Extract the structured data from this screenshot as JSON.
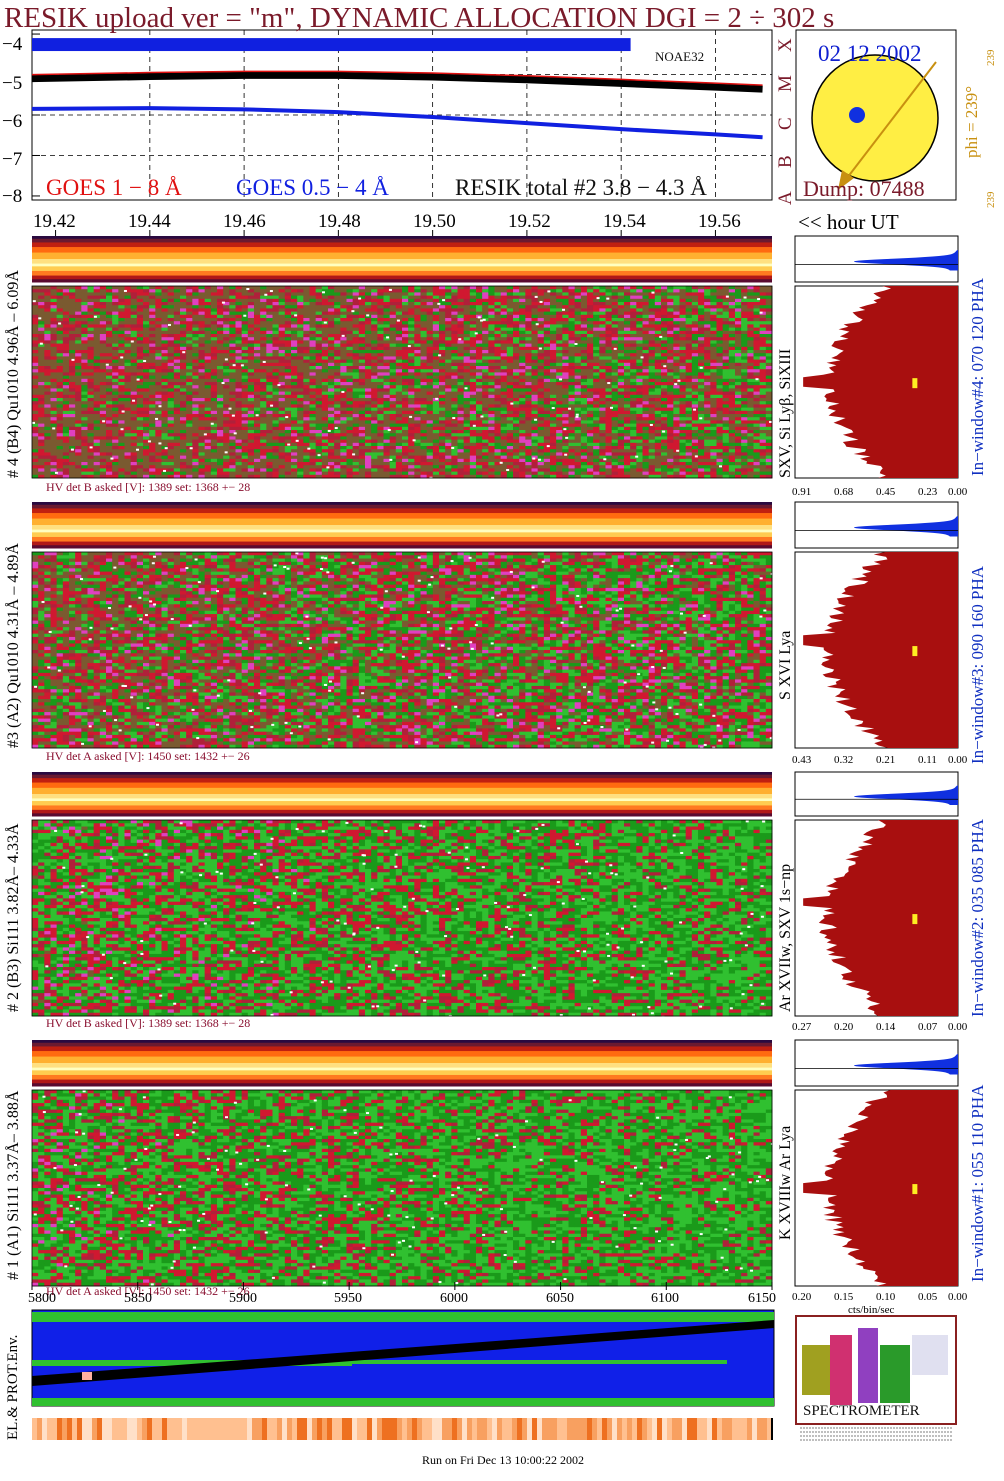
{
  "header": {
    "title": "RESIK upload ver = \"m\", DYNAMIC ALLOCATION  DGI =   2 ÷ 302 s"
  },
  "goes_panel": {
    "y_ticks": [
      "−4",
      "−5",
      "−6",
      "−7",
      "−8"
    ],
    "noaa_label": "NOAE32",
    "class_letters": [
      "X",
      "M",
      "C",
      "B",
      "A"
    ],
    "legend_goes_long": "GOES 1 − 8 Å",
    "legend_goes_short": "GOES 0.5 − 4 Å",
    "legend_resik": "RESIK total #2  3.8 − 4.3 Å"
  },
  "sun_panel": {
    "date": "02 12 2002",
    "dump": "Dump: 07488",
    "phi": "phi = 239°",
    "phi_small_top": "239",
    "phi_small_bottom": "239"
  },
  "time_axis": {
    "ticks": [
      "19.42",
      "19.44",
      "19.46",
      "19.48",
      "19.50",
      "19.52",
      "19.54",
      "19.56"
    ],
    "unit_label": "<< hour UT"
  },
  "channels": [
    {
      "left_label": "# 4 (B4) Qu1010 4.96Å – 6.09Å",
      "line_label": "SXV, Si Lyβ, SiXIII",
      "hv": "HV det B asked [V]:  1389 set:  1368  +−   28",
      "window": "In−window#4:  070 120 PHA",
      "pha_ticks": [
        "0.91",
        "0.68",
        "0.45",
        "0.23",
        "0.00"
      ]
    },
    {
      "left_label": "#3 (A2) Qu1010  4.31Å – 4.89Å",
      "line_label": "S XVI Lya",
      "hv": "HV det A asked [V]:  1450 set:  1432  +−   26",
      "window": "In−window#3:  090 160 PHA",
      "pha_ticks": [
        "0.43",
        "0.32",
        "0.21",
        "0.11",
        "0.00"
      ]
    },
    {
      "left_label": "# 2 (B3) Si111  3.82Å– 4.33Å",
      "line_label": "Ar XVIIw, SXV 1s−np",
      "hv": "HV det B asked [V]:  1389 set:  1368  +−   28",
      "window": "In−window#2:  035 085 PHA",
      "pha_ticks": [
        "0.27",
        "0.20",
        "0.14",
        "0.07",
        "0.00"
      ]
    },
    {
      "left_label": "# 1 (A1) Si111  3.37Å– 3.88Å",
      "line_label": "K XVIIIw  Ar Lya",
      "hv": "HV det A asked [V]:  1450 set:  1432  +−   26",
      "window": "In−window#1:  055 110 PHA",
      "pha_ticks": [
        "0.20",
        "0.15",
        "0.10",
        "0.05",
        "0.00"
      ]
    }
  ],
  "pha_unit": "cts/bin/sec",
  "bottom_axis": {
    "ticks": [
      "5800",
      "5850",
      "5900",
      "5950",
      "6000",
      "6050",
      "6100",
      "6150"
    ]
  },
  "env_panel": {
    "label": "EL.& PROT.Env."
  },
  "logo": {
    "bottom_text": "SPECTROMETER"
  },
  "footer": {
    "run_text": "Run on Fri Dec 13 10:00:22 2002"
  },
  "colors": {
    "title": "#7a1a2a",
    "goes_long": "#e01010",
    "goes_short": "#1020e0",
    "histogram": "#a80f0f",
    "histogram_top": "#1030e0",
    "window_text": "#1030c0",
    "hv_text": "#8a1030",
    "phi_text": "#c89010",
    "sun": "#ffee44"
  },
  "chart_data": {
    "type": "line",
    "title": "RESIK upload ver = \"m\", DYNAMIC ALLOCATION  DGI =   2 ÷ 302 s",
    "xlabel": "<< hour UT",
    "ylabel": "",
    "x": [
      19.415,
      19.44,
      19.46,
      19.48,
      19.5,
      19.52,
      19.54,
      19.56,
      19.57
    ],
    "ylim": [
      -8.1,
      -3.9
    ],
    "xlim": [
      19.415,
      19.572
    ],
    "log_scale": true,
    "grid": true,
    "series": [
      {
        "name": "GOES 1 − 8 Å",
        "values": [
          -5.1,
          -5.05,
          -5.02,
          -5.02,
          -5.06,
          -5.13,
          -5.22,
          -5.31,
          -5.36
        ]
      },
      {
        "name": "GOES 0.5 − 4 Å",
        "values": [
          -5.85,
          -5.83,
          -5.86,
          -5.93,
          -6.05,
          -6.2,
          -6.35,
          -6.48,
          -6.55
        ]
      },
      {
        "name": "RESIK total #2  3.8 − 4.3 Å",
        "values": [
          -4.25,
          -4.25,
          -4.25,
          -4.25,
          -4.25,
          -4.25,
          -4.25,
          -4.25,
          -4.25
        ]
      }
    ]
  }
}
